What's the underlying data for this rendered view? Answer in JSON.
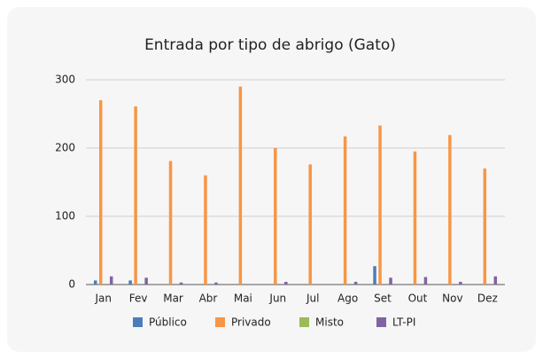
{
  "chart_data": {
    "type": "bar",
    "title": "Entrada por tipo de abrigo (Gato)",
    "categories": [
      "Jan",
      "Fev",
      "Mar",
      "Abr",
      "Mai",
      "Jun",
      "Jul",
      "Ago",
      "Set",
      "Out",
      "Nov",
      "Dez"
    ],
    "series": [
      {
        "name": "Público",
        "color": "#4a7ebb",
        "values": [
          6,
          6,
          0,
          0,
          0,
          0,
          0,
          0,
          27,
          0,
          0,
          0
        ]
      },
      {
        "name": "Privado",
        "color": "#f79646",
        "values": [
          270,
          261,
          181,
          160,
          290,
          200,
          176,
          217,
          233,
          195,
          219,
          170
        ]
      },
      {
        "name": "Misto",
        "color": "#9bbb59",
        "values": [
          0,
          0,
          0,
          0,
          0,
          0,
          0,
          0,
          0,
          0,
          0,
          0
        ]
      },
      {
        "name": "LT-PI",
        "color": "#8064a2",
        "values": [
          12,
          10,
          3,
          3,
          0,
          4,
          0,
          4,
          10,
          11,
          4,
          12
        ]
      }
    ],
    "ylim": [
      0,
      300
    ],
    "yticks": [
      0,
      100,
      200,
      300
    ],
    "grid": true,
    "legend": "bottom"
  }
}
